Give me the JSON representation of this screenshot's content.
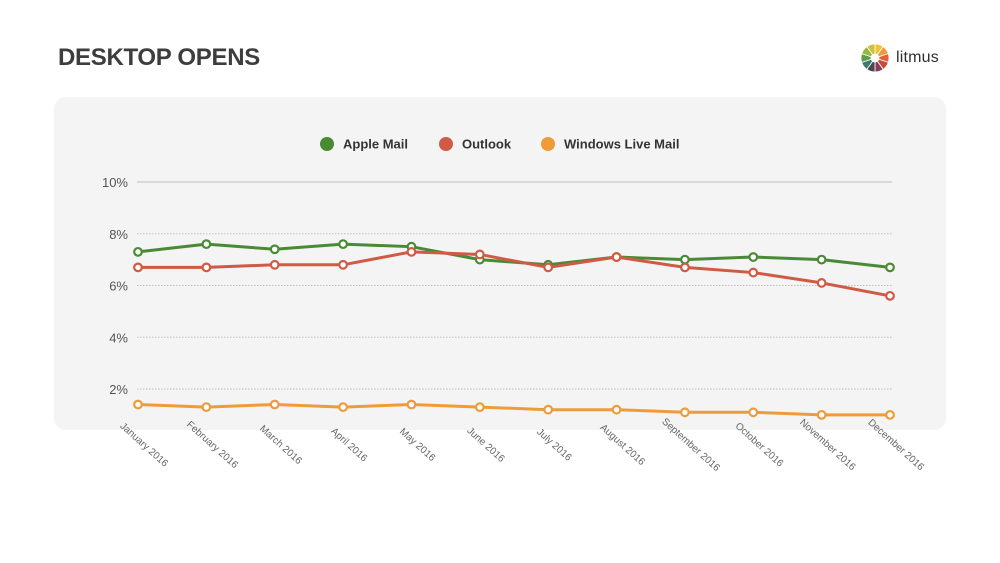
{
  "page": {
    "title": "DESKTOP OPENS",
    "brand": "litmus"
  },
  "colors": {
    "apple_mail": "#4a8a35",
    "outlook": "#cf5b45",
    "windows_live_mail": "#ef9b3a",
    "grid": "#bdbdbd",
    "panel": "#f4f4f4"
  },
  "chart_data": {
    "type": "line",
    "title": "DESKTOP OPENS",
    "xlabel": "",
    "ylabel": "",
    "ylim": [
      0.5,
      10
    ],
    "yticks": [
      2,
      4,
      6,
      8,
      10
    ],
    "ytick_labels": [
      "2%",
      "4%",
      "6%",
      "8%",
      "10%"
    ],
    "grid": true,
    "legend_position": "top-center",
    "categories": [
      "January 2016",
      "February 2016",
      "March 2016",
      "April 2016",
      "May 2016",
      "June 2016",
      "July 2016",
      "August 2016",
      "September 2016",
      "October 2016",
      "November 2016",
      "December 2016"
    ],
    "series": [
      {
        "name": "Apple Mail",
        "color": "#4a8a35",
        "values": [
          7.3,
          7.6,
          7.4,
          7.6,
          7.5,
          7.0,
          6.8,
          7.1,
          7.0,
          7.1,
          7.0,
          6.7
        ]
      },
      {
        "name": "Outlook",
        "color": "#cf5b45",
        "values": [
          6.7,
          6.7,
          6.8,
          6.8,
          7.3,
          7.2,
          6.7,
          7.1,
          6.7,
          6.5,
          6.1,
          5.6
        ]
      },
      {
        "name": "Windows Live Mail",
        "color": "#ef9b3a",
        "values": [
          1.4,
          1.3,
          1.4,
          1.3,
          1.4,
          1.3,
          1.2,
          1.2,
          1.1,
          1.1,
          1.0,
          1.0
        ]
      }
    ]
  }
}
